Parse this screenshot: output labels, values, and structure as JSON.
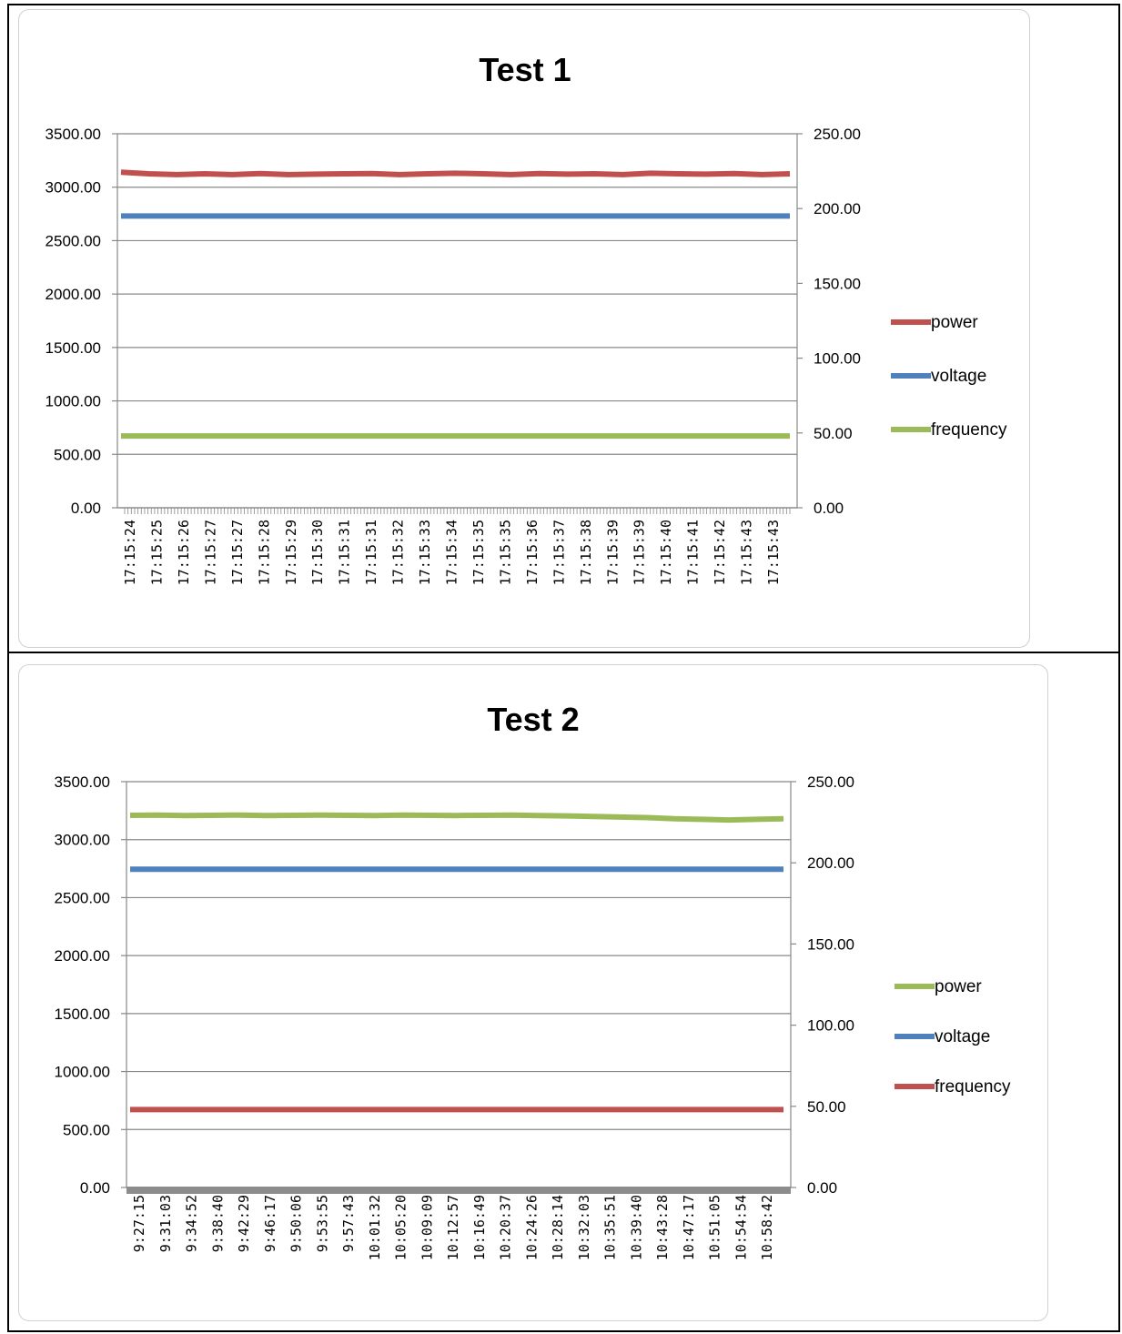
{
  "chart_data": [
    {
      "type": "line",
      "title": "Test 1",
      "xlabel": "",
      "ylabel": "",
      "ylim": [
        0,
        3500
      ],
      "y_ticks": [
        "0.00",
        "500.00",
        "1000.00",
        "1500.00",
        "2000.00",
        "2500.00",
        "3000.00",
        "3500.00"
      ],
      "y2lim": [
        0,
        250
      ],
      "y2_ticks": [
        "0.00",
        "50.00",
        "100.00",
        "150.00",
        "200.00",
        "250.00"
      ],
      "grid": true,
      "legend": "right",
      "categories": [
        "17:15:24",
        "17:15:25",
        "17:15:26",
        "17:15:27",
        "17:15:27",
        "17:15:28",
        "17:15:29",
        "17:15:30",
        "17:15:31",
        "17:15:31",
        "17:15:32",
        "17:15:33",
        "17:15:34",
        "17:15:35",
        "17:15:35",
        "17:15:36",
        "17:15:37",
        "17:15:38",
        "17:15:39",
        "17:15:39",
        "17:15:40",
        "17:15:41",
        "17:15:42",
        "17:15:43",
        "17:15:43"
      ],
      "series": [
        {
          "name": "power",
          "axis": "left",
          "color": "#C0504D",
          "values": [
            3140,
            3125,
            3118,
            3125,
            3118,
            3128,
            3118,
            3122,
            3125,
            3128,
            3118,
            3125,
            3130,
            3125,
            3118,
            3128,
            3122,
            3125,
            3118,
            3130,
            3125,
            3122,
            3128,
            3118,
            3125
          ]
        },
        {
          "name": "voltage",
          "axis": "right",
          "color": "#4F81BD",
          "values": [
            195,
            195,
            195,
            195,
            195,
            195,
            195,
            195,
            195,
            195,
            195,
            195,
            195,
            195,
            195,
            195,
            195,
            195,
            195,
            195,
            195,
            195,
            195,
            195,
            195
          ]
        },
        {
          "name": "frequency",
          "axis": "right",
          "color": "#9BBB59",
          "values": [
            48,
            48,
            48,
            48,
            48,
            48,
            48,
            48,
            48,
            48,
            48,
            48,
            48,
            48,
            48,
            48,
            48,
            48,
            48,
            48,
            48,
            48,
            48,
            48,
            48
          ]
        }
      ]
    },
    {
      "type": "line",
      "title": "Test 2",
      "xlabel": "",
      "ylabel": "",
      "ylim": [
        0,
        3500
      ],
      "y_ticks": [
        "0.00",
        "500.00",
        "1000.00",
        "1500.00",
        "2000.00",
        "2500.00",
        "3000.00",
        "3500.00"
      ],
      "y2lim": [
        0,
        250
      ],
      "y2_ticks": [
        "0.00",
        "50.00",
        "100.00",
        "150.00",
        "200.00",
        "250.00"
      ],
      "grid": true,
      "legend": "right",
      "categories": [
        "9:27:15",
        "9:31:03",
        "9:34:52",
        "9:38:40",
        "9:42:29",
        "9:46:17",
        "9:50:06",
        "9:53:55",
        "9:57:43",
        "10:01:32",
        "10:05:20",
        "10:09:09",
        "10:12:57",
        "10:16:49",
        "10:20:37",
        "10:24:26",
        "10:28:14",
        "10:32:03",
        "10:35:51",
        "10:39:40",
        "10:43:28",
        "10:47:17",
        "10:51:05",
        "10:54:54",
        "10:58:42"
      ],
      "series": [
        {
          "name": "power",
          "axis": "left",
          "color": "#9BBB59",
          "values": [
            3210,
            3212,
            3208,
            3210,
            3212,
            3208,
            3210,
            3212,
            3210,
            3208,
            3212,
            3210,
            3208,
            3210,
            3212,
            3208,
            3205,
            3200,
            3195,
            3190,
            3180,
            3175,
            3170,
            3175,
            3180
          ]
        },
        {
          "name": "voltage",
          "axis": "right",
          "color": "#4F81BD",
          "values": [
            196,
            196,
            196,
            196,
            196,
            196,
            196,
            196,
            196,
            196,
            196,
            196,
            196,
            196,
            196,
            196,
            196,
            196,
            196,
            196,
            196,
            196,
            196,
            196,
            196
          ]
        },
        {
          "name": "frequency",
          "axis": "right",
          "color": "#C0504D",
          "values": [
            48,
            48,
            48,
            48,
            48,
            48,
            48,
            48,
            48,
            48,
            48,
            48,
            48,
            48,
            48,
            48,
            48,
            48,
            48,
            48,
            48,
            48,
            48,
            48,
            48
          ]
        }
      ]
    }
  ]
}
